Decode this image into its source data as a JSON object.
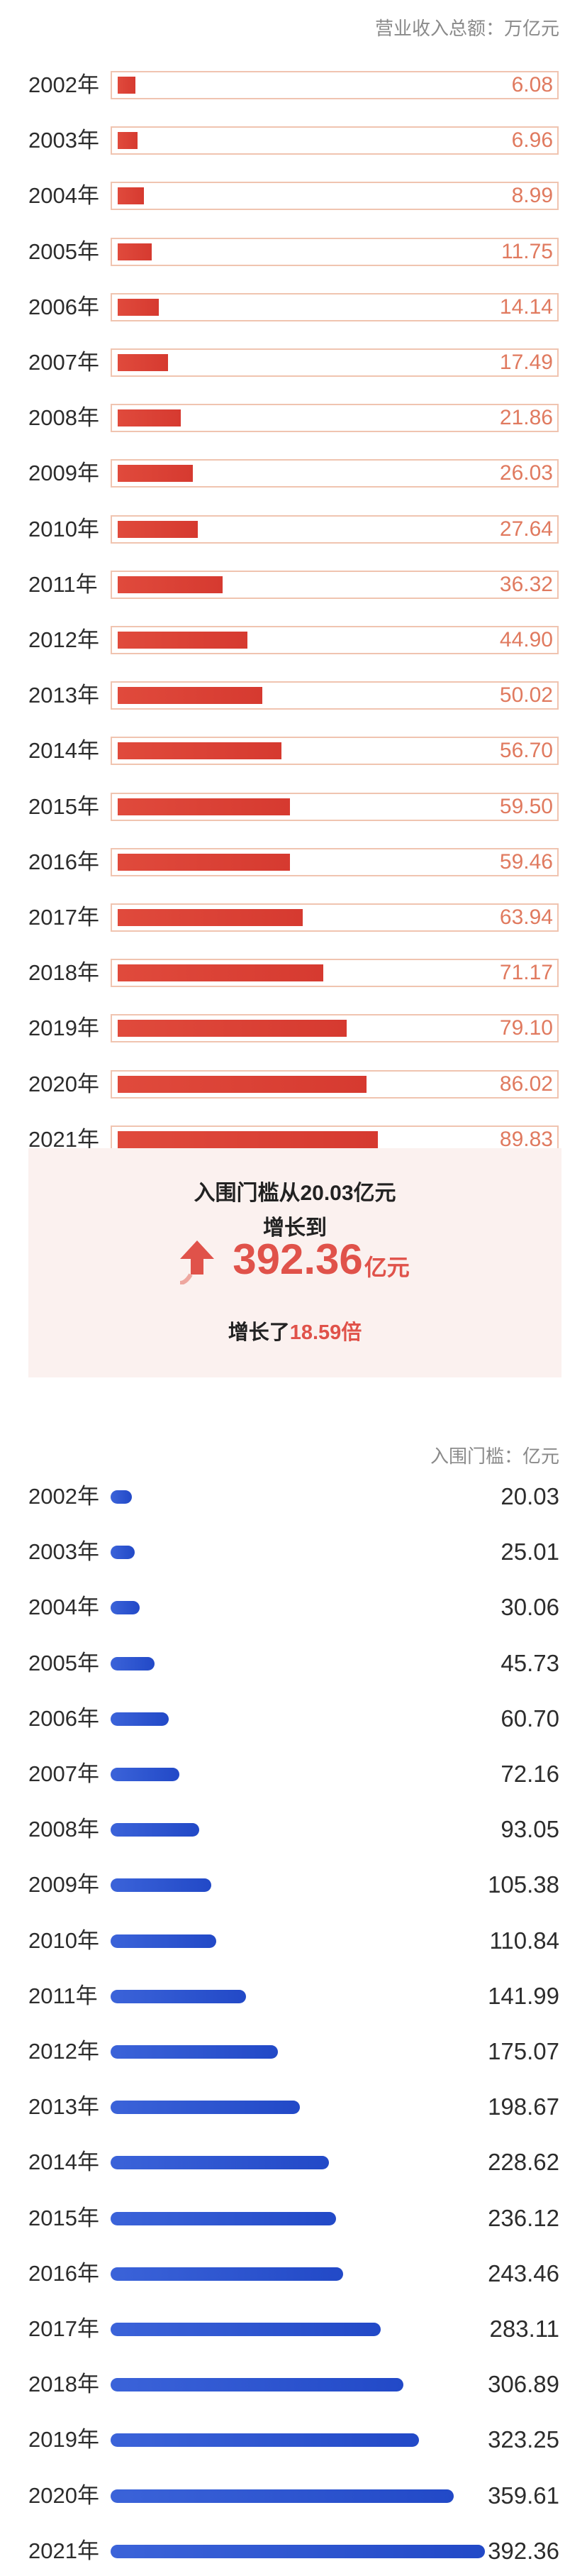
{
  "colors": {
    "red_bar": "#d63a30",
    "red_value": "#e07a5f",
    "red_border": "#f0c4b0",
    "blue_bar": "#2249c7",
    "summary_bg": "#fbf1ef",
    "highlight": "#e0524a"
  },
  "top_unit": "营业收入总额：万亿元",
  "bottom_unit": "入围门槛：亿元",
  "summary": {
    "line1": "入围门槛从20.03亿元",
    "line2": "增长到",
    "big_value": "392.36",
    "big_unit": "亿元",
    "growth_prefix": "增长了",
    "growth_value": "18.59倍",
    "icon": "up-arrow-icon"
  },
  "chart_data": [
    {
      "type": "bar",
      "orientation": "horizontal",
      "ylabel": "营业收入总额：万亿元",
      "categories": [
        "2002年",
        "2003年",
        "2004年",
        "2005年",
        "2006年",
        "2007年",
        "2008年",
        "2009年",
        "2010年",
        "2011年",
        "2012年",
        "2013年",
        "2014年",
        "2015年",
        "2016年",
        "2017年",
        "2018年",
        "2019年",
        "2020年",
        "2021年"
      ],
      "labels": [
        "6.08",
        "6.96",
        "8.99",
        "11.75",
        "14.14",
        "17.49",
        "21.86",
        "26.03",
        "27.64",
        "36.32",
        "44.90",
        "50.02",
        "56.70",
        "59.50",
        "59.46",
        "63.94",
        "71.17",
        "79.10",
        "86.02",
        "89.83"
      ],
      "values": [
        6.08,
        6.96,
        8.99,
        11.75,
        14.14,
        17.49,
        21.86,
        26.03,
        27.64,
        36.32,
        44.9,
        50.02,
        56.7,
        59.5,
        59.46,
        63.94,
        71.17,
        79.1,
        86.02,
        89.83
      ],
      "xlim": [
        0,
        100
      ]
    },
    {
      "type": "bar",
      "orientation": "horizontal",
      "ylabel": "入围门槛：亿元",
      "categories": [
        "2002年",
        "2003年",
        "2004年",
        "2005年",
        "2006年",
        "2007年",
        "2008年",
        "2009年",
        "2010年",
        "2011年",
        "2012年",
        "2013年",
        "2014年",
        "2015年",
        "2016年",
        "2017年",
        "2018年",
        "2019年",
        "2020年",
        "2021年"
      ],
      "labels": [
        "20.03",
        "25.01",
        "30.06",
        "45.73",
        "60.70",
        "72.16",
        "93.05",
        "105.38",
        "110.84",
        "141.99",
        "175.07",
        "198.67",
        "228.62",
        "236.12",
        "243.46",
        "283.11",
        "306.89",
        "323.25",
        "359.61",
        "392.36"
      ],
      "values": [
        20.03,
        25.01,
        30.06,
        45.73,
        60.7,
        72.16,
        93.05,
        105.38,
        110.84,
        141.99,
        175.07,
        198.67,
        228.62,
        236.12,
        243.46,
        283.11,
        306.89,
        323.25,
        359.61,
        392.36
      ],
      "xlim": [
        0,
        392.36
      ]
    }
  ]
}
